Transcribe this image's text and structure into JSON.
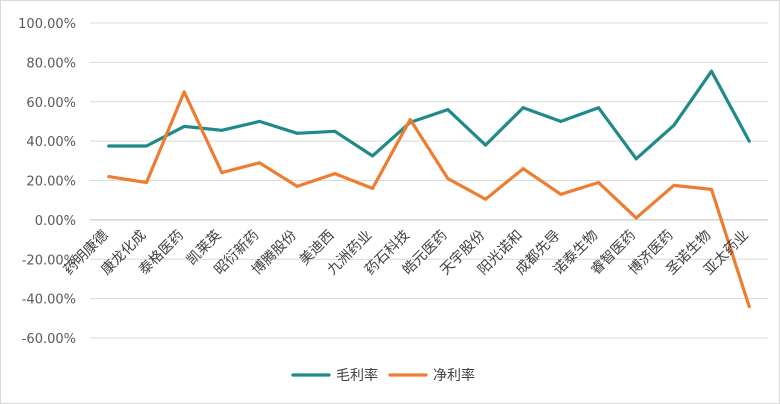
{
  "chart_data": {
    "type": "line",
    "categories": [
      "药明康德",
      "康龙化成",
      "泰格医药",
      "凯莱英",
      "昭衍新药",
      "博腾股份",
      "美迪西",
      "九洲药业",
      "药石科技",
      "皓元医药",
      "天宇股份",
      "阳光诺和",
      "成都先导",
      "诺泰生物",
      "睿智医药",
      "博济医药",
      "圣诺生物",
      "亚太药业"
    ],
    "series": [
      {
        "name": "毛利率",
        "color": "#1f8a8a",
        "values": [
          37.5,
          37.5,
          47.5,
          45.5,
          50.0,
          44.0,
          45.0,
          32.5,
          49.5,
          56.0,
          38.0,
          57.0,
          50.0,
          57.0,
          31.0,
          48.0,
          75.5,
          40.0
        ]
      },
      {
        "name": "净利率",
        "color": "#ed7d31",
        "values": [
          22.0,
          19.0,
          65.0,
          24.0,
          29.0,
          17.0,
          23.5,
          16.0,
          51.0,
          21.0,
          10.5,
          26.0,
          13.0,
          19.0,
          1.0,
          17.5,
          15.5,
          -44.0
        ]
      }
    ],
    "ylim": [
      -60,
      100
    ],
    "yticks": [
      "100.00%",
      "80.00%",
      "60.00%",
      "40.00%",
      "20.00%",
      "0.00%",
      "-20.00%",
      "-40.00%",
      "-60.00%"
    ],
    "ytick_values": [
      100,
      80,
      60,
      40,
      20,
      0,
      -20,
      -40,
      -60
    ],
    "grid": true,
    "legend": "bottom"
  }
}
